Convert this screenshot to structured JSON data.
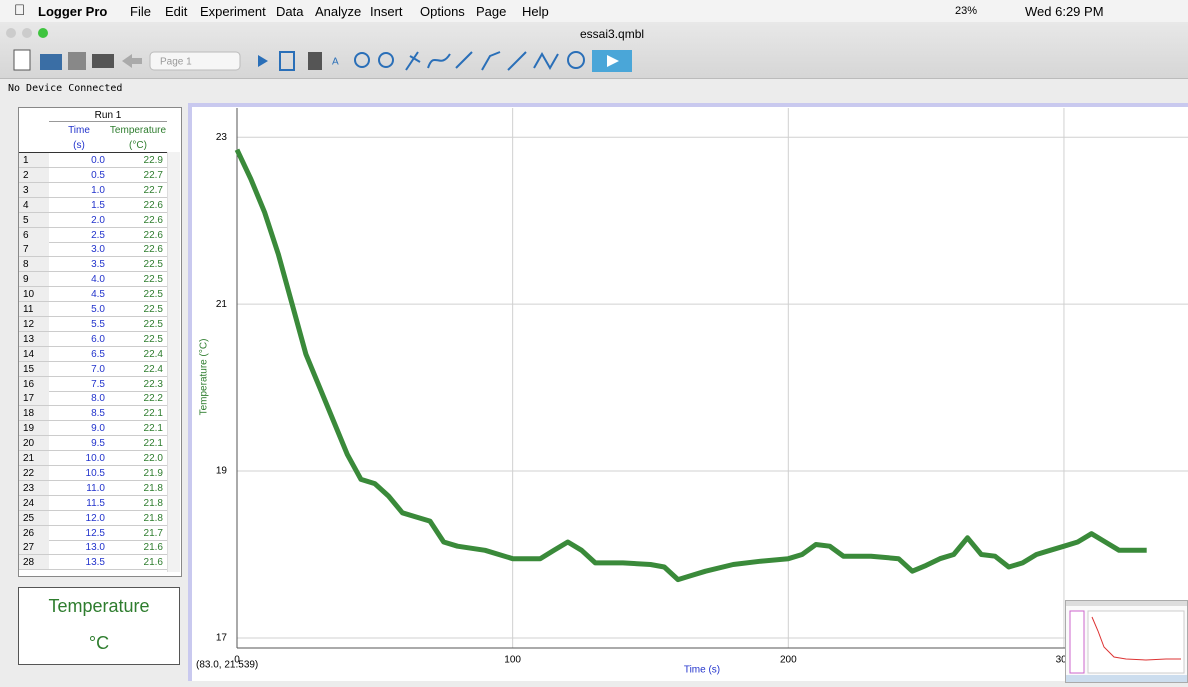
{
  "menu_bar": {
    "app": "Logger Pro",
    "items": [
      "File",
      "Edit",
      "Experiment",
      "Data",
      "Analyze",
      "Insert",
      "Options",
      "Page",
      "Help"
    ],
    "battery": "23%",
    "clock": "Wed 6:29 PM"
  },
  "window": {
    "title": "essai3.qmbl",
    "page_selector": "Page 1",
    "status": "No Device Connected"
  },
  "table": {
    "run": "Run 1",
    "columns": [
      {
        "name": "Time",
        "unit": "(s)"
      },
      {
        "name": "Temperature",
        "unit": "(°C)"
      }
    ],
    "rows": [
      [
        "1",
        "0.0",
        "22.9"
      ],
      [
        "2",
        "0.5",
        "22.7"
      ],
      [
        "3",
        "1.0",
        "22.7"
      ],
      [
        "4",
        "1.5",
        "22.6"
      ],
      [
        "5",
        "2.0",
        "22.6"
      ],
      [
        "6",
        "2.5",
        "22.6"
      ],
      [
        "7",
        "3.0",
        "22.6"
      ],
      [
        "8",
        "3.5",
        "22.5"
      ],
      [
        "9",
        "4.0",
        "22.5"
      ],
      [
        "10",
        "4.5",
        "22.5"
      ],
      [
        "11",
        "5.0",
        "22.5"
      ],
      [
        "12",
        "5.5",
        "22.5"
      ],
      [
        "13",
        "6.0",
        "22.5"
      ],
      [
        "14",
        "6.5",
        "22.4"
      ],
      [
        "15",
        "7.0",
        "22.4"
      ],
      [
        "16",
        "7.5",
        "22.3"
      ],
      [
        "17",
        "8.0",
        "22.2"
      ],
      [
        "18",
        "8.5",
        "22.1"
      ],
      [
        "19",
        "9.0",
        "22.1"
      ],
      [
        "20",
        "9.5",
        "22.1"
      ],
      [
        "21",
        "10.0",
        "22.0"
      ],
      [
        "22",
        "10.5",
        "21.9"
      ],
      [
        "23",
        "11.0",
        "21.8"
      ],
      [
        "24",
        "11.5",
        "21.8"
      ],
      [
        "25",
        "12.0",
        "21.8"
      ],
      [
        "26",
        "12.5",
        "21.7"
      ],
      [
        "27",
        "13.0",
        "21.6"
      ],
      [
        "28",
        "13.5",
        "21.6"
      ]
    ]
  },
  "meter": {
    "label": "Temperature",
    "unit": "°C"
  },
  "graph": {
    "type": "line",
    "x_label": "Time (s)",
    "y_label": "Temperature (°C)",
    "cursor": "(83.0, 21.539)",
    "color": "#3a8a3a",
    "x": [
      0,
      5,
      10,
      15,
      20,
      25,
      30,
      35,
      40,
      45,
      50,
      55,
      60,
      65,
      70,
      75,
      80,
      90,
      100,
      110,
      115,
      120,
      125,
      130,
      140,
      150,
      155,
      160,
      165,
      170,
      180,
      190,
      200,
      205,
      210,
      215,
      220,
      230,
      240,
      245,
      250,
      255,
      260,
      265,
      270,
      275,
      280,
      285,
      290,
      295,
      300,
      305,
      310,
      315,
      320,
      330
    ],
    "values": [
      22.85,
      22.5,
      22.1,
      21.6,
      21.0,
      20.4,
      20.0,
      19.6,
      19.2,
      18.9,
      18.85,
      18.7,
      18.5,
      18.45,
      18.4,
      18.15,
      18.1,
      18.05,
      17.95,
      17.95,
      18.05,
      18.15,
      18.05,
      17.9,
      17.9,
      17.88,
      17.85,
      17.7,
      17.75,
      17.8,
      17.88,
      17.92,
      17.95,
      18.0,
      18.12,
      18.1,
      17.98,
      17.98,
      17.95,
      17.8,
      17.87,
      17.95,
      18.0,
      18.2,
      18.0,
      17.98,
      17.85,
      17.9,
      18.0,
      18.05,
      18.1,
      18.15,
      18.25,
      18.15,
      18.05,
      18.05
    ],
    "xlim": [
      0,
      345
    ],
    "ylim": [
      16.88,
      23.35
    ],
    "xticks": [
      0,
      100,
      200,
      300
    ],
    "yticks": [
      17,
      19,
      21,
      23
    ],
    "grid": true
  }
}
